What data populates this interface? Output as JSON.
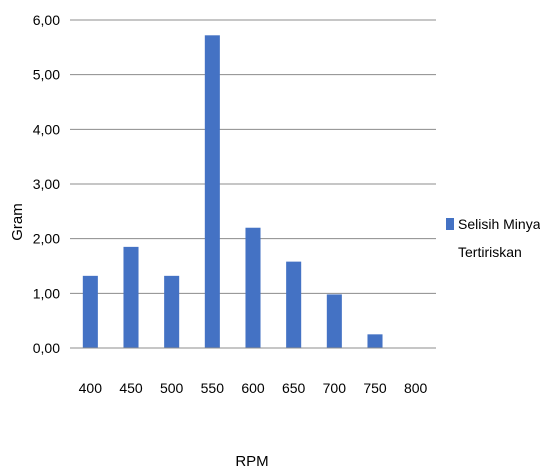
{
  "chart_data": {
    "type": "bar",
    "categories": [
      "400",
      "450",
      "500",
      "550",
      "600",
      "650",
      "700",
      "750",
      "800"
    ],
    "series": [
      {
        "name": "Selisih Minyak Tertiriskan",
        "values": [
          1.32,
          1.85,
          1.32,
          5.72,
          2.2,
          1.58,
          0.98,
          0.25,
          0
        ],
        "color": "#4472C4"
      }
    ],
    "ylim": [
      0,
      6
    ],
    "yticks": [
      "0,00",
      "1,00",
      "2,00",
      "3,00",
      "4,00",
      "5,00",
      "6,00"
    ],
    "xlabel": "RPM",
    "ylabel": "Gram",
    "legend": {
      "position": "right",
      "lines": [
        "Selisih Minyak",
        "Tertiriskan"
      ]
    },
    "grid": true,
    "grid_color": "#8c8c8c"
  }
}
